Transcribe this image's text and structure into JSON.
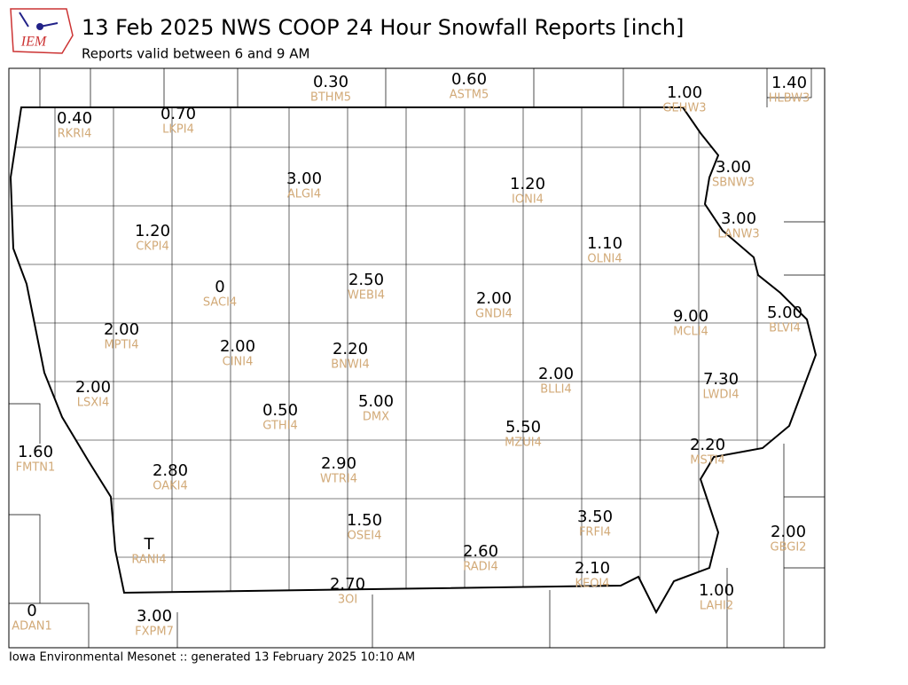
{
  "title": "13 Feb 2025 NWS COOP 24 Hour Snowfall Reports [inch]",
  "subtitle": "Reports valid between 6 and 9 AM",
  "logo": "IEM",
  "footer": "Iowa Environmental Mesonet :: generated 13 February 2025 10:10 AM",
  "stations": [
    {
      "value": "0.30",
      "id": "BTHM5"
    },
    {
      "value": "0.60",
      "id": "ASTM5"
    },
    {
      "value": "1.00",
      "id": "GEHW3"
    },
    {
      "value": "1.40",
      "id": "HLBW3"
    },
    {
      "value": "0.40",
      "id": "RKRI4"
    },
    {
      "value": "0.70",
      "id": "LKPI4"
    },
    {
      "value": "3.00",
      "id": "ALGI4"
    },
    {
      "value": "1.20",
      "id": "IONI4"
    },
    {
      "value": "3.00",
      "id": "SBNW3"
    },
    {
      "value": "3.00",
      "id": "LANW3"
    },
    {
      "value": "1.20",
      "id": "CKPI4"
    },
    {
      "value": "1.10",
      "id": "OLNI4"
    },
    {
      "value": "0",
      "id": "SACI4"
    },
    {
      "value": "2.50",
      "id": "WEBI4"
    },
    {
      "value": "2.00",
      "id": "GNDI4"
    },
    {
      "value": "9.00",
      "id": "MCLI4"
    },
    {
      "value": "5.00",
      "id": "BLVI4"
    },
    {
      "value": "2.00",
      "id": "MPTI4"
    },
    {
      "value": "2.00",
      "id": "CINI4"
    },
    {
      "value": "2.20",
      "id": "BNWI4"
    },
    {
      "value": "2.00",
      "id": "BLLI4"
    },
    {
      "value": "7.30",
      "id": "LWDI4"
    },
    {
      "value": "2.00",
      "id": "LSXI4"
    },
    {
      "value": "0.50",
      "id": "GTHI4"
    },
    {
      "value": "5.00",
      "id": "DMX"
    },
    {
      "value": "5.50",
      "id": "MZUI4"
    },
    {
      "value": "2.20",
      "id": "MSTI4"
    },
    {
      "value": "1.60",
      "id": "FMTN1"
    },
    {
      "value": "2.80",
      "id": "OAKI4"
    },
    {
      "value": "2.90",
      "id": "WTRI4"
    },
    {
      "value": "1.50",
      "id": "OSEI4"
    },
    {
      "value": "3.50",
      "id": "FRFI4"
    },
    {
      "value": "2.00",
      "id": "GBGI2"
    },
    {
      "value": "T",
      "id": "RANI4"
    },
    {
      "value": "2.60",
      "id": "RADI4"
    },
    {
      "value": "2.10",
      "id": "KEOI4"
    },
    {
      "value": "2.70",
      "id": "3OI"
    },
    {
      "value": "1.00",
      "id": "LAHI2"
    },
    {
      "value": "0",
      "id": "ADAN1"
    },
    {
      "value": "3.00",
      "id": "FXPM7"
    }
  ]
}
